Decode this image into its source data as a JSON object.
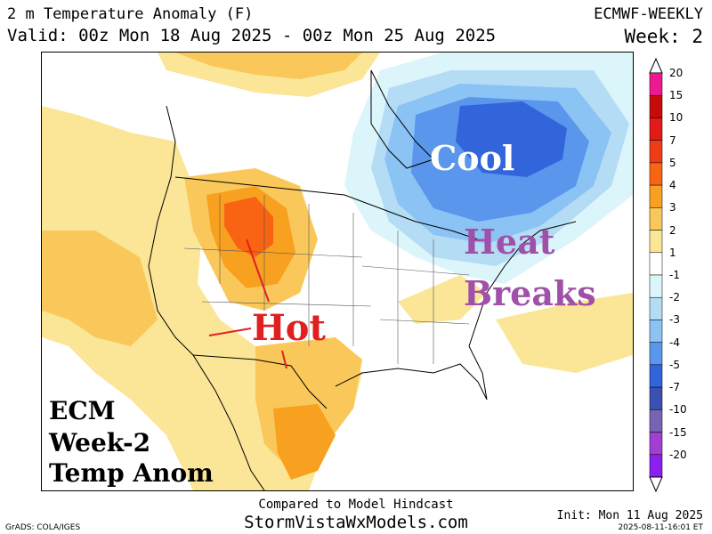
{
  "header": {
    "title": "2 m Temperature Anomaly (F)",
    "valid": "Valid: 00z Mon 18 Aug 2025 - 00z Mon 25 Aug 2025",
    "model": "ECMWF-WEEKLY",
    "week": "Week: 2"
  },
  "annotations": {
    "cool": "Cool",
    "heat_line1": "Heat",
    "heat_line2": "Breaks",
    "hot": "Hot",
    "ecm_line1": "ECM",
    "ecm_line2": "Week-2",
    "ecm_line3": "Temp Anom"
  },
  "legend": {
    "labels": [
      "20",
      "15",
      "10",
      "7",
      "5",
      "4",
      "3",
      "2",
      "1",
      "-1",
      "-2",
      "-3",
      "-4",
      "-5",
      "-7",
      "-10",
      "-15",
      "-20"
    ],
    "colors": [
      "#f01890",
      "#c80a0a",
      "#e21a1a",
      "#f03c14",
      "#f86414",
      "#f8a020",
      "#fac85a",
      "#fae696",
      "#ffffff",
      "#dcf5fa",
      "#b4dcf5",
      "#8cc3f5",
      "#5a96eb",
      "#3264dc",
      "#3c50b4",
      "#7864b4",
      "#a040d2",
      "#8c1ef0"
    ]
  },
  "map_colors": {
    "warm_light": "#fae696",
    "warm": "#fac85a",
    "warm_strong": "#f8a020",
    "hot": "#f86414",
    "cool_light": "#dcf5fa",
    "cool": "#b4dcf5",
    "cold": "#8cc3f5",
    "colder": "#5a96eb",
    "coldest": "#3264dc"
  },
  "footer": {
    "compared": "Compared to Model Hindcast",
    "site": "StormVistaWxModels.com",
    "grads": "GrADS: COLA/IGES",
    "init": "Init: Mon 11 Aug 2025",
    "timestamp": "2025-08-11-16:01 ET"
  }
}
